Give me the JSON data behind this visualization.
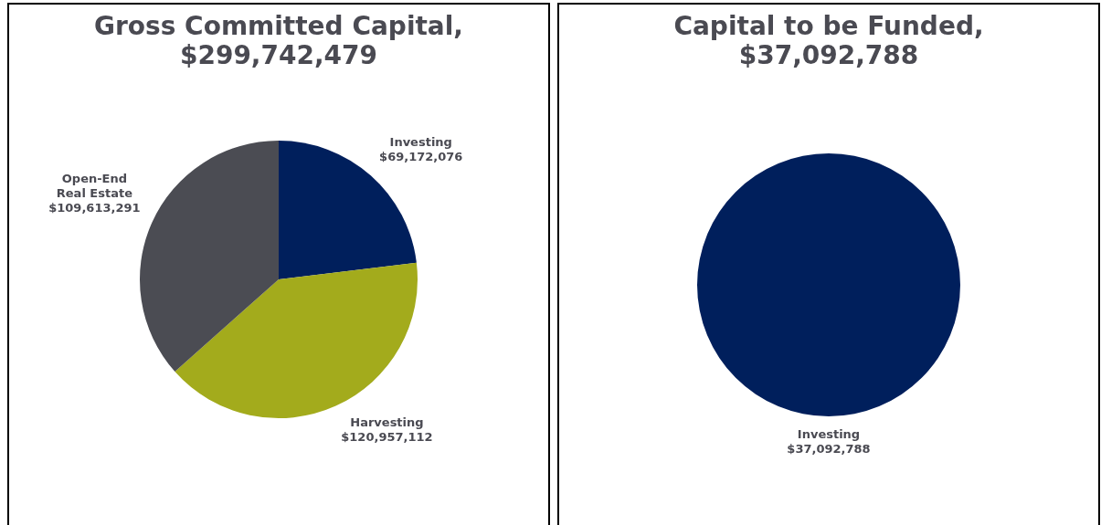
{
  "chart_data": [
    {
      "type": "pie",
      "title": "Gross Committed Capital, $299,742,479",
      "categories": [
        "Investing",
        "Harvesting",
        "Open-End Real Estate"
      ],
      "values": [
        69172076,
        120957112,
        109613291
      ],
      "colors": [
        "#001f5c",
        "#a3ab1c",
        "#4b4c53"
      ],
      "value_labels": [
        "$69,172,076",
        "$120,957,112",
        "$109,613,291"
      ]
    },
    {
      "type": "pie",
      "title": "Capital to be Funded, $37,092,788",
      "categories": [
        "Investing"
      ],
      "values": [
        37092788
      ],
      "colors": [
        "#001f5c"
      ],
      "value_labels": [
        "$37,092,788"
      ]
    }
  ]
}
